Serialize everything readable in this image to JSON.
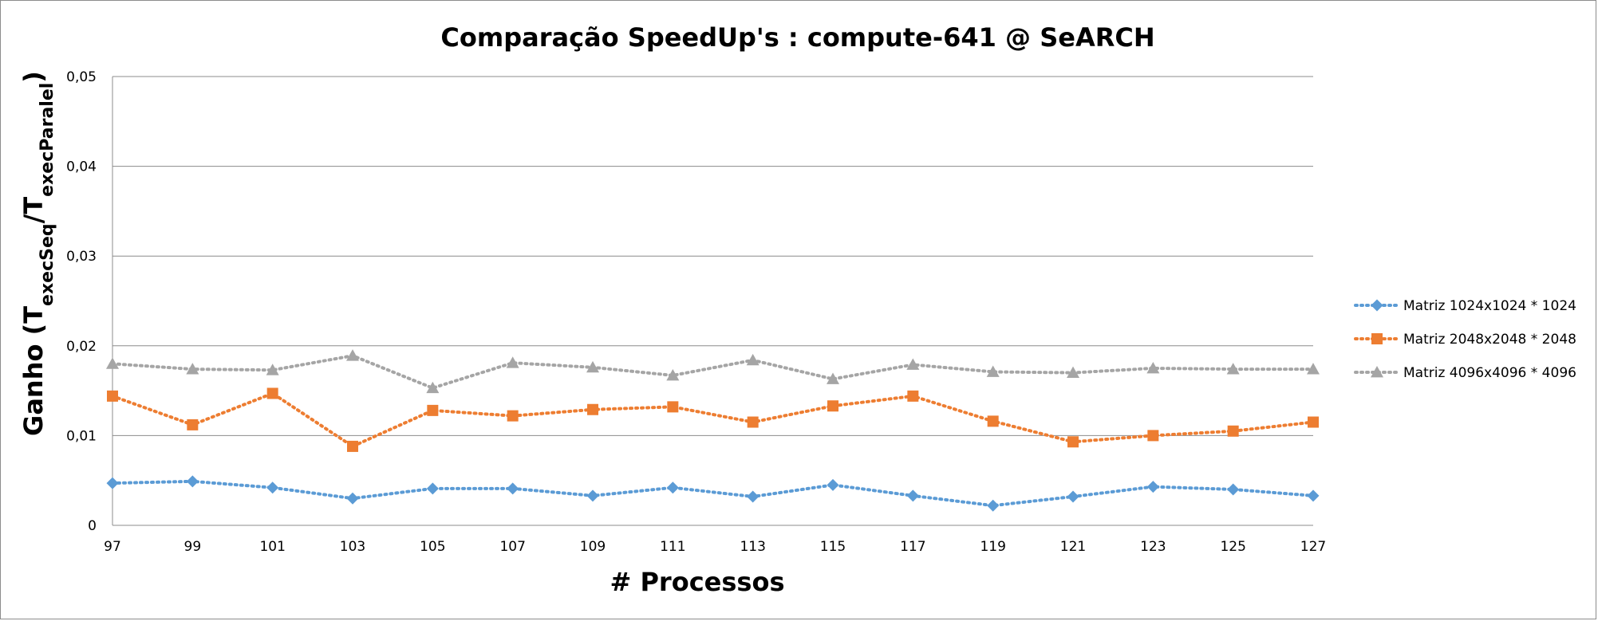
{
  "chart_data": {
    "type": "line",
    "title": "Comparação SpeedUp's : compute-641 @ SeARCH",
    "xlabel": "# Processos",
    "ylabel": {
      "base": "Ganho (T",
      "sub1": "execSeq",
      "slash": "/T",
      "sub2": "execParalel",
      "close": ")"
    },
    "categories": [
      "97",
      "99",
      "101",
      "103",
      "105",
      "107",
      "109",
      "111",
      "113",
      "115",
      "117",
      "119",
      "121",
      "123",
      "125",
      "127"
    ],
    "y_ticks": [
      "0",
      "0,01",
      "0,02",
      "0,03",
      "0,04",
      "0,05"
    ],
    "ylim": [
      0,
      0.05
    ],
    "grid": true,
    "legend_position": "right",
    "series": [
      {
        "name": "Matriz 1024x1024 * 1024",
        "color": "#5B9BD5",
        "marker": "diamond",
        "values": [
          0.0047,
          0.0049,
          0.0042,
          0.003,
          0.0041,
          0.0041,
          0.0033,
          0.0042,
          0.0032,
          0.0045,
          0.0033,
          0.0022,
          0.0032,
          0.0043,
          0.004,
          0.0033
        ]
      },
      {
        "name": "Matriz 2048x2048 * 2048",
        "color": "#ED7D31",
        "marker": "square",
        "values": [
          0.0144,
          0.0112,
          0.0147,
          0.0088,
          0.0128,
          0.0122,
          0.0129,
          0.0132,
          0.0115,
          0.0133,
          0.0144,
          0.0116,
          0.0093,
          0.01,
          0.0105,
          0.0115
        ]
      },
      {
        "name": "Matriz 4096x4096 * 4096",
        "color": "#A5A5A5",
        "marker": "triangle",
        "values": [
          0.018,
          0.0174,
          0.0173,
          0.0189,
          0.0153,
          0.0181,
          0.0176,
          0.0167,
          0.0184,
          0.0163,
          0.0179,
          0.0171,
          0.017,
          0.0175,
          0.0174,
          0.0174
        ]
      }
    ]
  }
}
